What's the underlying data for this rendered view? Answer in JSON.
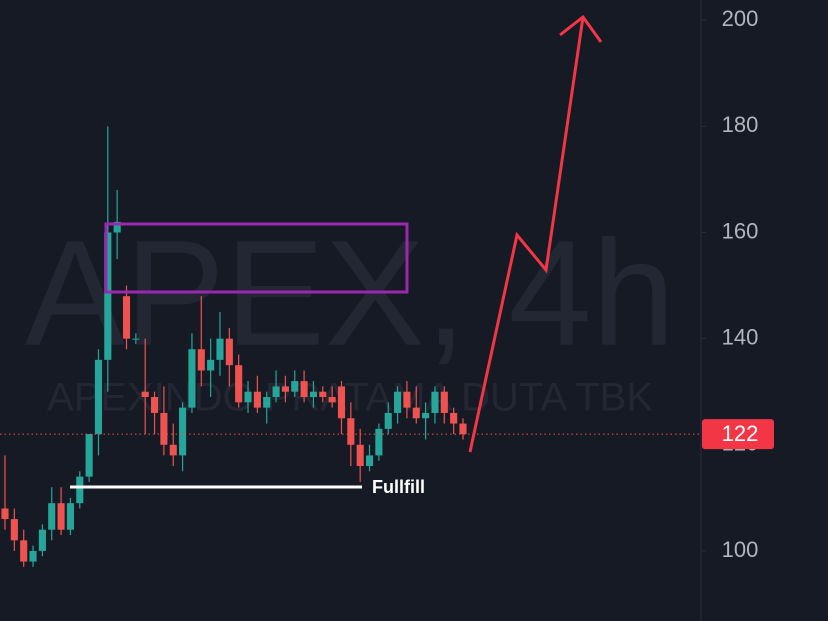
{
  "chart_data": {
    "type": "candlestick",
    "watermark": "APEX, 4h",
    "watermark_subtitle": "APEXINDO PRATAMA DUTA TBK",
    "annotation": "Fullfill",
    "up_color": "#26a69a",
    "down_color": "#ef5350",
    "ylim": [
      86.8,
      203.8
    ],
    "yticks": [
      100,
      120,
      140,
      160,
      180,
      200
    ],
    "last_price": 122,
    "open": [
      108,
      106,
      102,
      98,
      100,
      104,
      109,
      104,
      109,
      114,
      122,
      136,
      160,
      148,
      140,
      130,
      129,
      126,
      120,
      118,
      127,
      138,
      134,
      136,
      140,
      135,
      128,
      130,
      127,
      129,
      131,
      130,
      132,
      129,
      130,
      129,
      131,
      125,
      120,
      116,
      118,
      123,
      126,
      130,
      127,
      125,
      126,
      130,
      126,
      124
    ],
    "high": [
      118,
      108,
      104,
      101,
      105,
      112,
      112,
      110,
      115,
      122,
      138,
      180,
      168,
      150,
      141,
      140,
      130,
      131,
      124,
      128,
      141,
      148,
      140,
      145,
      142,
      137,
      132,
      133,
      130,
      134,
      133,
      134,
      134,
      132,
      131,
      131,
      132,
      128,
      123,
      120,
      124,
      128,
      131,
      132,
      131,
      128,
      131,
      131,
      127,
      125
    ],
    "low": [
      104,
      100,
      97,
      97,
      99,
      102,
      103,
      103,
      108,
      113,
      118,
      130,
      155,
      138,
      139,
      122,
      122,
      118,
      116,
      115,
      126,
      131,
      129,
      133,
      131,
      127,
      126,
      126,
      124,
      128,
      128,
      129,
      128,
      127,
      128,
      127,
      122,
      116,
      113,
      115,
      117,
      122,
      124,
      125,
      124,
      121,
      124,
      124,
      122,
      121
    ],
    "close": [
      106,
      102,
      98,
      100,
      104,
      109,
      104,
      109,
      114,
      122,
      136,
      160,
      162,
      140,
      140,
      129,
      126,
      120,
      118,
      127,
      138,
      134,
      136,
      140,
      135,
      128,
      130,
      127,
      129,
      131,
      130,
      132,
      129,
      130,
      129,
      128,
      125,
      120,
      116,
      118,
      123,
      126,
      130,
      127,
      125,
      126,
      130,
      126,
      124,
      122
    ]
  }
}
